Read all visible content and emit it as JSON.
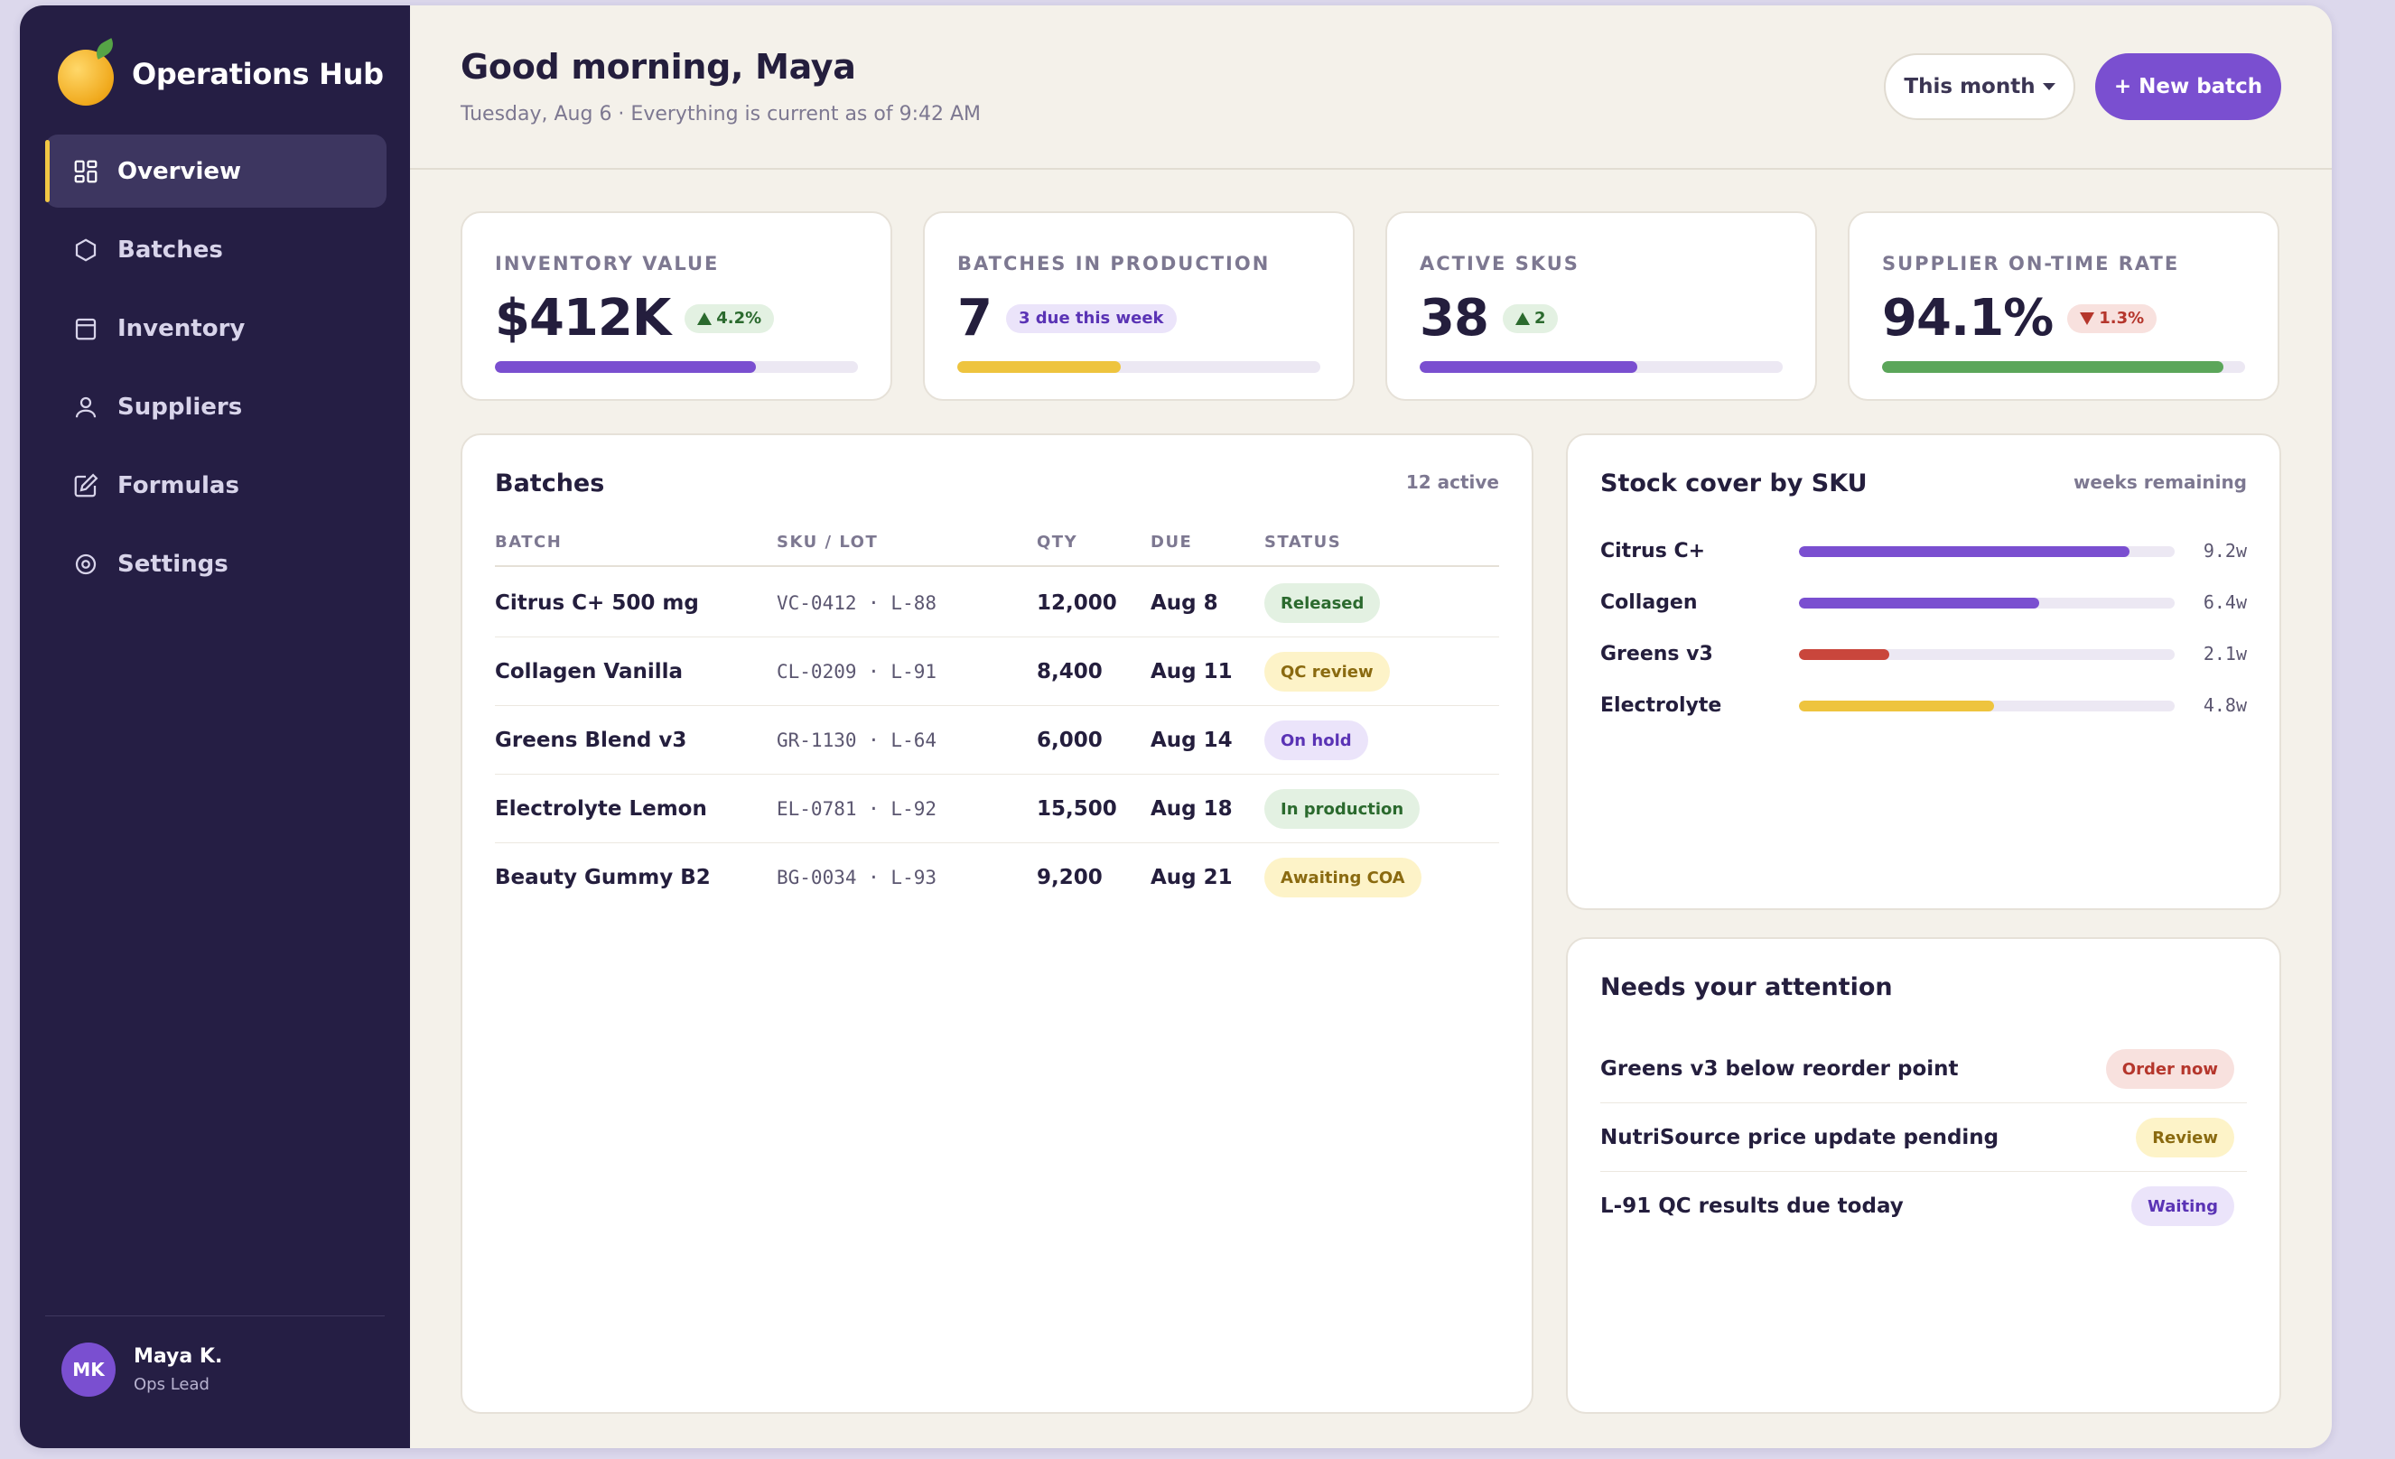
{
  "brand": {
    "name": "Operations Hub",
    "icon": "orange-logo"
  },
  "nav": {
    "items": [
      {
        "label": "Overview",
        "icon": "grid-icon",
        "active": true
      },
      {
        "label": "Batches",
        "icon": "hexagon-icon"
      },
      {
        "label": "Inventory",
        "icon": "box-icon"
      },
      {
        "label": "Suppliers",
        "icon": "user-icon"
      },
      {
        "label": "Formulas",
        "icon": "edit-icon"
      },
      {
        "label": "Settings",
        "icon": "target-icon"
      }
    ]
  },
  "user": {
    "initials": "MK",
    "name": "Maya K.",
    "role": "Ops Lead"
  },
  "header": {
    "greeting": "Good morning, Maya",
    "subtitle": "Tuesday, Aug 6 · Everything is current as of 9:42 AM",
    "range_label": "This month",
    "new_batch_label": "+ New batch"
  },
  "kpis": [
    {
      "label": "INVENTORY VALUE",
      "value": "$412K",
      "badge": "4.2%",
      "trend": "up",
      "progress": 0.72,
      "color": "#7a4fd0"
    },
    {
      "label": "BATCHES IN PRODUCTION",
      "value": "7",
      "badge": "3 due this week",
      "trend": "none",
      "progress": 0.45,
      "color": "#eec43e"
    },
    {
      "label": "ACTIVE SKUS",
      "value": "38",
      "badge": "2",
      "trend": "up",
      "progress": 0.6,
      "color": "#7a4fd0"
    },
    {
      "label": "SUPPLIER ON-TIME RATE",
      "value": "94.1%",
      "badge": "1.3%",
      "trend": "down",
      "progress": 0.94,
      "color": "#5ba65a"
    }
  ],
  "batches": {
    "title": "Batches",
    "count": "12 active",
    "columns": [
      "BATCH",
      "SKU / LOT",
      "QTY",
      "DUE",
      "STATUS"
    ],
    "rows": [
      {
        "batch": "Citrus C+ 500 mg",
        "sku": "VC-0412 · L-88",
        "qty": "12,000",
        "due": "Aug 8",
        "status": "Released",
        "status_bg": "#e3f1e2",
        "status_fg": "#2b6a2e"
      },
      {
        "batch": "Collagen Vanilla",
        "sku": "CL-0209 · L-91",
        "qty": "8,400",
        "due": "Aug 11",
        "status": "QC review",
        "status_bg": "#fdf3c8",
        "status_fg": "#8a6a10"
      },
      {
        "batch": "Greens Blend v3",
        "sku": "GR-1130 · L-64",
        "qty": "6,000",
        "due": "Aug 14",
        "status": "On hold",
        "status_bg": "#ebe4fa",
        "status_fg": "#5a33b5"
      },
      {
        "batch": "Electrolyte Lemon",
        "sku": "EL-0781 · L-92",
        "qty": "15,500",
        "due": "Aug 18",
        "status": "In production",
        "status_bg": "#e3f1e2",
        "status_fg": "#2b6a2e"
      },
      {
        "batch": "Beauty Gummy B2",
        "sku": "BG-0034 · L-93",
        "qty": "9,200",
        "due": "Aug 21",
        "status": "Awaiting COA",
        "status_bg": "#fdf3c8",
        "status_fg": "#8a6a10"
      }
    ]
  },
  "stock": {
    "title": "Stock cover by SKU",
    "unit_label": "weeks remaining",
    "items": [
      {
        "name": "Citrus C+",
        "value": "9.2w",
        "level": 0.88,
        "color": "#7a4fd0"
      },
      {
        "name": "Collagen",
        "value": "6.4w",
        "level": 0.64,
        "color": "#7a4fd0"
      },
      {
        "name": "Greens v3",
        "value": "2.1w",
        "level": 0.24,
        "color": "#c9463c"
      },
      {
        "name": "Electrolyte",
        "value": "4.8w",
        "level": 0.52,
        "color": "#eec43e"
      }
    ]
  },
  "attention": {
    "title": "Needs your attention",
    "items": [
      {
        "text": "Greens v3 below reorder point",
        "badge": "Order now",
        "bg": "#f8e1de",
        "fg": "#b5362c"
      },
      {
        "text": "NutriSource price update pending",
        "badge": "Review",
        "bg": "#fdf3c8",
        "fg": "#8a6a10"
      },
      {
        "text": "L-91 QC results due today",
        "badge": "Waiting",
        "bg": "#ebe4fa",
        "fg": "#5a33b5"
      }
    ]
  }
}
